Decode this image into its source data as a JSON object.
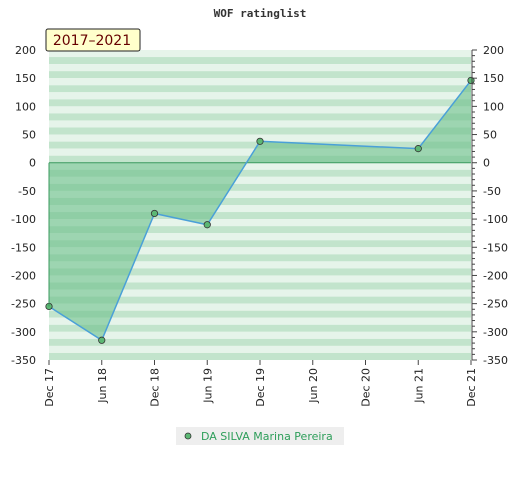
{
  "chart_data": {
    "type": "area",
    "title": "WOF ratinglist",
    "period_label": "2017–2021",
    "x_tick_labels": [
      "Dec 17",
      "Jun 18",
      "Dec 18",
      "Jun 19",
      "Dec 19",
      "Jun 20",
      "Dec 20",
      "Jun 21",
      "Dec 21"
    ],
    "ylim": [
      -350,
      200
    ],
    "y_ticks": [
      200,
      150,
      100,
      50,
      0,
      -50,
      -100,
      -150,
      -200,
      -250,
      -300,
      -350
    ],
    "series": [
      {
        "name": "DA SILVA Marina Pereira",
        "points": [
          {
            "x": "Dec 17",
            "y": -255
          },
          {
            "x": "Jun 18",
            "y": -315
          },
          {
            "x": "Dec 18",
            "y": -90
          },
          {
            "x": "Jun 19",
            "y": -110
          },
          {
            "x": "Dec 19",
            "y": 38
          },
          {
            "x": "Jun 21",
            "y": 25
          },
          {
            "x": "Dec 21",
            "y": 146
          }
        ]
      }
    ],
    "grid": true,
    "legend_position": "bottom",
    "colors": {
      "line": "#4aa0d8",
      "fill": "#6cc08a",
      "marker": "#5cb874",
      "band_dark": "#c2e4cc",
      "band_light": "#e6f4ea"
    }
  }
}
